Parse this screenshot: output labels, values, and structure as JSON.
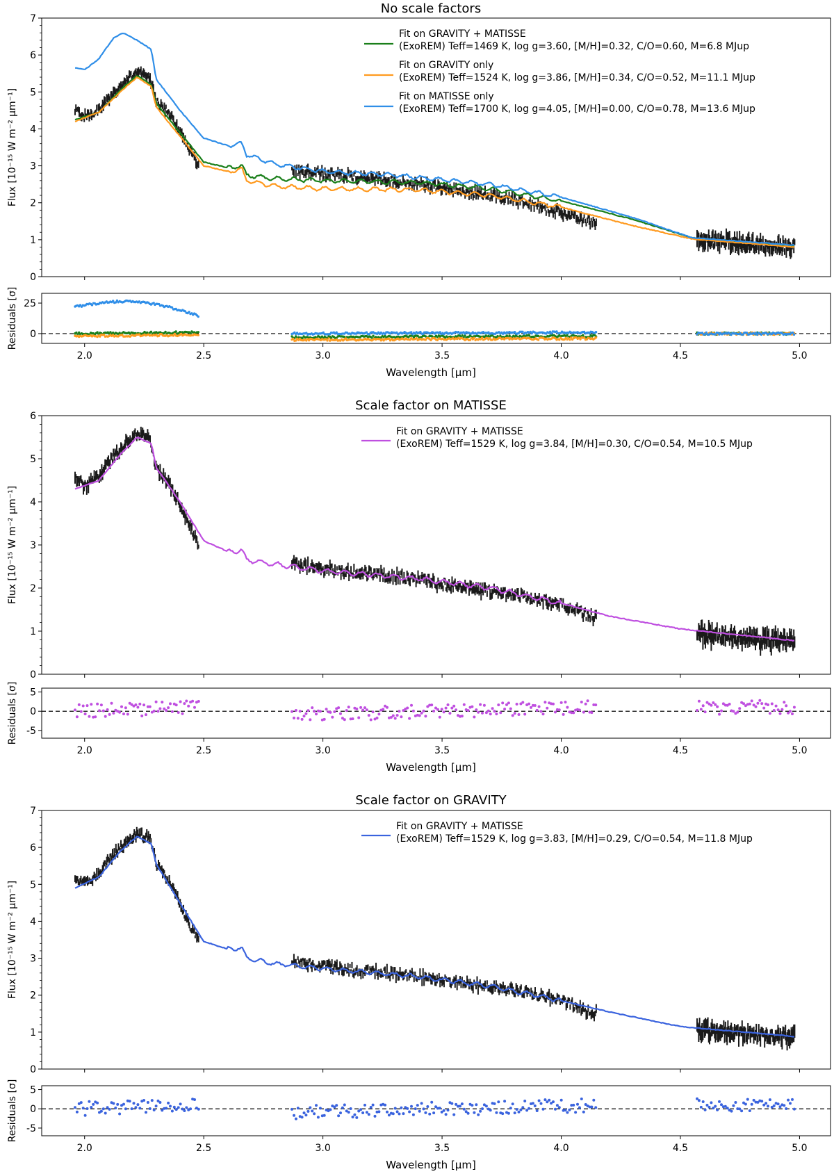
{
  "figure": {
    "x_axis_label": "Wavelength [μm]"
  },
  "colors": {
    "data": "#1a1a1a",
    "green": "#1a7f1a",
    "orange": "#ff9a1f",
    "lightblue": "#2f8ee8",
    "purple": "#bf4fe0",
    "royalblue": "#3a63de"
  },
  "chart_data": [
    {
      "type": "line",
      "title": "No scale factors",
      "xlabel": "Wavelength [μm]",
      "ylabel": "Flux [10⁻¹⁵ W m⁻² μm⁻¹]",
      "xlim": [
        1.82,
        5.13
      ],
      "ylim": [
        0,
        7
      ],
      "xticks": [
        2.0,
        2.5,
        3.0,
        3.5,
        4.0,
        4.5,
        5.0
      ],
      "yticks": [
        0,
        1,
        2,
        3,
        4,
        5,
        6,
        7
      ],
      "legend_position": "top-right",
      "observed": {
        "segments": [
          [
            1.96,
            2.48
          ],
          [
            2.87,
            4.15
          ],
          [
            4.57,
            4.98
          ]
        ],
        "knots": [
          [
            1.96,
            4.5
          ],
          [
            2.0,
            4.35
          ],
          [
            2.06,
            4.5
          ],
          [
            2.12,
            4.95
          ],
          [
            2.18,
            5.35
          ],
          [
            2.22,
            5.55
          ],
          [
            2.27,
            5.45
          ],
          [
            2.29,
            5.0
          ],
          [
            2.3,
            4.75
          ],
          [
            2.35,
            4.45
          ],
          [
            2.4,
            3.95
          ],
          [
            2.44,
            3.45
          ],
          [
            2.48,
            3.0
          ],
          [
            2.87,
            2.88
          ],
          [
            3.0,
            2.8
          ],
          [
            3.2,
            2.68
          ],
          [
            3.4,
            2.5
          ],
          [
            3.6,
            2.3
          ],
          [
            3.8,
            2.1
          ],
          [
            4.0,
            1.72
          ],
          [
            4.1,
            1.55
          ],
          [
            4.15,
            1.4
          ],
          [
            4.57,
            0.98
          ],
          [
            4.7,
            0.95
          ],
          [
            4.8,
            0.87
          ],
          [
            4.9,
            0.82
          ],
          [
            4.98,
            0.8
          ]
        ],
        "noise": [
          0.2,
          0.25,
          0.3
        ]
      },
      "series": [
        {
          "name": "Fit on GRAVITY + MATISSE",
          "legend_line1": "Fit on GRAVITY + MATISSE",
          "legend_line2": "(ExoREM) Teff=1469 K, log g=3.60, [M/H]=0.32, C/O=0.60, M=6.8 MJup",
          "color": "green",
          "knots": [
            [
              1.96,
              4.25
            ],
            [
              2.06,
              4.45
            ],
            [
              2.15,
              5.05
            ],
            [
              2.22,
              5.45
            ],
            [
              2.28,
              5.2
            ],
            [
              2.3,
              4.7
            ],
            [
              2.4,
              3.9
            ],
            [
              2.5,
              3.1
            ],
            [
              2.6,
              2.95
            ],
            [
              2.66,
              3.0
            ],
            [
              2.68,
              2.75
            ],
            [
              2.8,
              2.65
            ],
            [
              3.0,
              2.6
            ],
            [
              3.4,
              2.55
            ],
            [
              3.7,
              2.38
            ],
            [
              4.0,
              2.05
            ],
            [
              4.3,
              1.55
            ],
            [
              4.55,
              1.05
            ],
            [
              4.98,
              0.83
            ]
          ]
        },
        {
          "name": "Fit on GRAVITY only",
          "legend_line1": "Fit on GRAVITY only",
          "legend_line2": "(ExoREM) Teff=1524 K, log g=3.86, [M/H]=0.34, C/O=0.52, M=11.1 MJup",
          "color": "orange",
          "knots": [
            [
              1.96,
              4.2
            ],
            [
              2.06,
              4.45
            ],
            [
              2.15,
              5.0
            ],
            [
              2.22,
              5.4
            ],
            [
              2.28,
              5.15
            ],
            [
              2.3,
              4.6
            ],
            [
              2.4,
              3.8
            ],
            [
              2.5,
              3.0
            ],
            [
              2.6,
              2.85
            ],
            [
              2.66,
              2.9
            ],
            [
              2.68,
              2.6
            ],
            [
              2.8,
              2.45
            ],
            [
              3.0,
              2.38
            ],
            [
              3.4,
              2.35
            ],
            [
              3.7,
              2.2
            ],
            [
              4.0,
              1.88
            ],
            [
              4.3,
              1.38
            ],
            [
              4.55,
              1.02
            ],
            [
              4.98,
              0.8
            ]
          ]
        },
        {
          "name": "Fit on MATISSE only",
          "legend_line1": "Fit on MATISSE only",
          "legend_line2": "(ExoREM) Teff=1700 K, log g=4.05, [M/H]=0.00, C/O=0.78, M=13.6 MJup",
          "color": "lightblue",
          "knots": [
            [
              1.96,
              5.65
            ],
            [
              2.0,
              5.6
            ],
            [
              2.06,
              5.9
            ],
            [
              2.12,
              6.45
            ],
            [
              2.16,
              6.6
            ],
            [
              2.22,
              6.4
            ],
            [
              2.28,
              6.15
            ],
            [
              2.3,
              5.35
            ],
            [
              2.4,
              4.5
            ],
            [
              2.5,
              3.75
            ],
            [
              2.6,
              3.55
            ],
            [
              2.66,
              3.6
            ],
            [
              2.68,
              3.3
            ],
            [
              2.8,
              3.05
            ],
            [
              3.0,
              2.85
            ],
            [
              3.3,
              2.75
            ],
            [
              3.7,
              2.5
            ],
            [
              4.0,
              2.15
            ],
            [
              4.3,
              1.6
            ],
            [
              4.55,
              1.05
            ],
            [
              4.98,
              0.85
            ]
          ]
        }
      ],
      "residuals": {
        "ylabel": "Residuals [σ]",
        "ylim": [
          -8,
          33
        ],
        "yticks": [
          0,
          25
        ],
        "style": "connected",
        "series": [
          {
            "color": "green",
            "segment_means": [
              [
                0,
                1
              ],
              [
                -3,
                -2
              ],
              [
                0,
                0
              ]
            ]
          },
          {
            "color": "orange",
            "segment_means": [
              [
                -2,
                -1
              ],
              [
                -5,
                -4
              ],
              [
                0,
                0
              ]
            ]
          },
          {
            "color": "lightblue",
            "segment_means": [
              [
                22,
                14
              ],
              [
                0,
                1
              ],
              [
                0,
                0
              ]
            ]
          }
        ]
      }
    },
    {
      "type": "line",
      "title": "Scale factor on MATISSE",
      "xlabel": "Wavelength [μm]",
      "ylabel": "Flux [10⁻¹⁵ W m⁻² μm⁻¹]",
      "xlim": [
        1.82,
        5.13
      ],
      "ylim": [
        0,
        6
      ],
      "xticks": [
        2.0,
        2.5,
        3.0,
        3.5,
        4.0,
        4.5,
        5.0
      ],
      "yticks": [
        0,
        1,
        2,
        3,
        4,
        5,
        6
      ],
      "legend_position": "top-right",
      "observed": {
        "segments": [
          [
            1.96,
            2.48
          ],
          [
            2.87,
            4.15
          ],
          [
            4.57,
            4.98
          ]
        ],
        "knots": [
          [
            1.96,
            4.6
          ],
          [
            2.0,
            4.35
          ],
          [
            2.06,
            4.6
          ],
          [
            2.12,
            5.05
          ],
          [
            2.18,
            5.4
          ],
          [
            2.22,
            5.6
          ],
          [
            2.27,
            5.5
          ],
          [
            2.29,
            5.05
          ],
          [
            2.3,
            4.8
          ],
          [
            2.35,
            4.45
          ],
          [
            2.4,
            3.95
          ],
          [
            2.44,
            3.45
          ],
          [
            2.48,
            3.0
          ],
          [
            2.87,
            2.55
          ],
          [
            3.0,
            2.45
          ],
          [
            3.2,
            2.35
          ],
          [
            3.4,
            2.2
          ],
          [
            3.6,
            2.0
          ],
          [
            3.8,
            1.85
          ],
          [
            4.0,
            1.62
          ],
          [
            4.1,
            1.4
          ],
          [
            4.15,
            1.3
          ],
          [
            4.57,
            0.95
          ],
          [
            4.7,
            0.88
          ],
          [
            4.8,
            0.82
          ],
          [
            4.9,
            0.78
          ],
          [
            4.98,
            0.76
          ]
        ],
        "noise": [
          0.18,
          0.22,
          0.28
        ]
      },
      "series": [
        {
          "name": "Fit on GRAVITY + MATISSE",
          "legend_line1": "Fit on GRAVITY + MATISSE",
          "legend_line2": "(ExoREM) Teff=1529 K, log g=3.84, [M/H]=0.30, C/O=0.54, M=10.5 MJup",
          "color": "purple",
          "knots": [
            [
              1.96,
              4.3
            ],
            [
              2.06,
              4.5
            ],
            [
              2.15,
              5.1
            ],
            [
              2.22,
              5.5
            ],
            [
              2.28,
              5.35
            ],
            [
              2.3,
              4.8
            ],
            [
              2.4,
              4.0
            ],
            [
              2.5,
              3.1
            ],
            [
              2.6,
              2.85
            ],
            [
              2.66,
              2.88
            ],
            [
              2.68,
              2.65
            ],
            [
              2.8,
              2.55
            ],
            [
              3.0,
              2.4
            ],
            [
              3.4,
              2.22
            ],
            [
              3.7,
              2.0
            ],
            [
              4.0,
              1.65
            ],
            [
              4.2,
              1.35
            ],
            [
              4.5,
              1.05
            ],
            [
              4.98,
              0.78
            ]
          ]
        }
      ],
      "residuals": {
        "ylabel": "Residuals [σ]",
        "ylim": [
          -7,
          6
        ],
        "yticks": [
          -5,
          0,
          5
        ],
        "style": "scatter",
        "series": [
          {
            "color": "purple",
            "segment_means": [
              [
                0,
                1
              ],
              [
                -1,
                1
              ],
              [
                1,
                1
              ]
            ]
          }
        ]
      }
    },
    {
      "type": "line",
      "title": "Scale factor on GRAVITY",
      "xlabel": "Wavelength [μm]",
      "ylabel": "Flux [10⁻¹⁵ W m⁻² μm⁻¹]",
      "xlim": [
        1.82,
        5.13
      ],
      "ylim": [
        0,
        7
      ],
      "xticks": [
        2.0,
        2.5,
        3.0,
        3.5,
        4.0,
        4.5,
        5.0
      ],
      "yticks": [
        0,
        1,
        2,
        3,
        4,
        5,
        6,
        7
      ],
      "legend_position": "top-right",
      "observed": {
        "segments": [
          [
            1.96,
            2.48
          ],
          [
            2.87,
            4.15
          ],
          [
            4.57,
            4.98
          ]
        ],
        "knots": [
          [
            1.96,
            5.2
          ],
          [
            2.0,
            5.0
          ],
          [
            2.06,
            5.3
          ],
          [
            2.12,
            5.8
          ],
          [
            2.18,
            6.2
          ],
          [
            2.22,
            6.35
          ],
          [
            2.27,
            6.3
          ],
          [
            2.29,
            5.9
          ],
          [
            2.3,
            5.55
          ],
          [
            2.35,
            5.1
          ],
          [
            2.4,
            4.5
          ],
          [
            2.44,
            3.9
          ],
          [
            2.48,
            3.45
          ],
          [
            2.87,
            2.95
          ],
          [
            3.0,
            2.78
          ],
          [
            3.2,
            2.65
          ],
          [
            3.4,
            2.5
          ],
          [
            3.6,
            2.3
          ],
          [
            3.8,
            2.15
          ],
          [
            4.0,
            1.85
          ],
          [
            4.1,
            1.6
          ],
          [
            4.15,
            1.52
          ],
          [
            4.57,
            1.05
          ],
          [
            4.7,
            1.0
          ],
          [
            4.8,
            0.95
          ],
          [
            4.9,
            0.9
          ],
          [
            4.98,
            0.88
          ]
        ],
        "noise": [
          0.22,
          0.24,
          0.3
        ]
      },
      "series": [
        {
          "name": "Fit on GRAVITY + MATISSE",
          "legend_line1": "Fit on GRAVITY + MATISSE",
          "legend_line2": "(ExoREM) Teff=1529 K, log g=3.83, [M/H]=0.29, C/O=0.54, M=11.8 MJup",
          "color": "royalblue",
          "knots": [
            [
              1.96,
              4.9
            ],
            [
              2.06,
              5.2
            ],
            [
              2.15,
              5.9
            ],
            [
              2.22,
              6.3
            ],
            [
              2.28,
              6.1
            ],
            [
              2.3,
              5.55
            ],
            [
              2.4,
              4.5
            ],
            [
              2.5,
              3.45
            ],
            [
              2.6,
              3.25
            ],
            [
              2.66,
              3.28
            ],
            [
              2.68,
              3.0
            ],
            [
              2.8,
              2.85
            ],
            [
              3.0,
              2.72
            ],
            [
              3.4,
              2.5
            ],
            [
              3.7,
              2.25
            ],
            [
              4.0,
              1.85
            ],
            [
              4.2,
              1.55
            ],
            [
              4.5,
              1.15
            ],
            [
              4.98,
              0.88
            ]
          ]
        }
      ],
      "residuals": {
        "ylabel": "Residuals [σ]",
        "ylim": [
          -7,
          6
        ],
        "yticks": [
          -5,
          0,
          5
        ],
        "style": "scatter",
        "series": [
          {
            "color": "royalblue",
            "segment_means": [
              [
                0,
                1
              ],
              [
                -1,
                1
              ],
              [
                1,
                1
              ]
            ]
          }
        ]
      }
    }
  ]
}
